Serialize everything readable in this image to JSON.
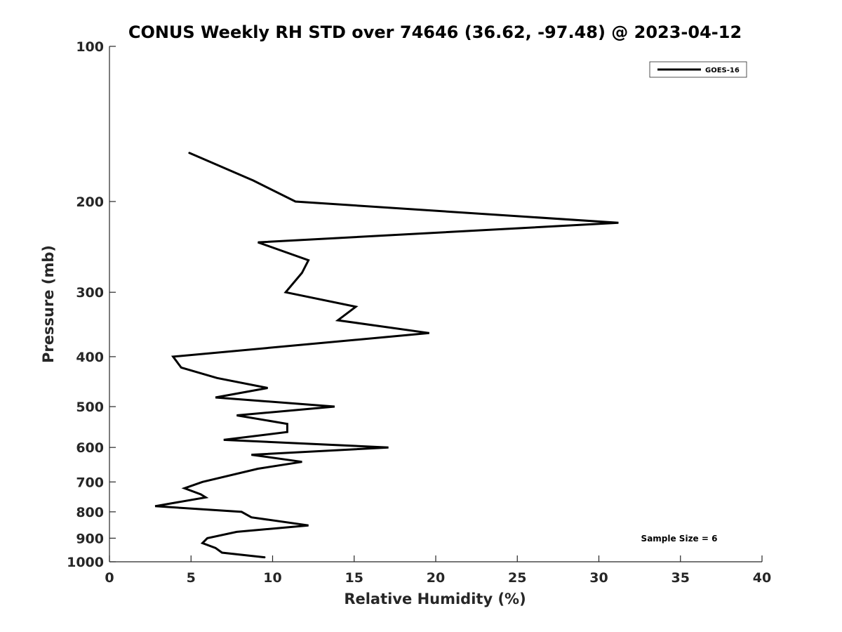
{
  "chart_data": {
    "type": "line",
    "title": "CONUS Weekly RH STD over 74646 (36.62, -97.48) @ 2023-04-12",
    "xlabel": "Relative Humidity (%)",
    "ylabel": "Pressure (mb)",
    "xlim": [
      0,
      40
    ],
    "ylim": [
      100,
      1000
    ],
    "y_scale": "log",
    "y_reversed": true,
    "grid": false,
    "legend_position": "top-right",
    "x_ticks": [
      "0",
      "5",
      "10",
      "15",
      "20",
      "25",
      "30",
      "35",
      "40"
    ],
    "x_tick_values": [
      0,
      5,
      10,
      15,
      20,
      25,
      30,
      35,
      40
    ],
    "y_ticks": [
      "100",
      "200",
      "300",
      "400",
      "500",
      "600",
      "700",
      "800",
      "900",
      "1000"
    ],
    "y_tick_values": [
      100,
      200,
      300,
      400,
      500,
      600,
      700,
      800,
      900,
      1000
    ],
    "series": [
      {
        "name": "GOES-16",
        "color": "#000000",
        "points": [
          {
            "x": 4.9,
            "p": 161
          },
          {
            "x": 8.8,
            "p": 182
          },
          {
            "x": 11.4,
            "p": 200
          },
          {
            "x": 31.2,
            "p": 220
          },
          {
            "x": 9.1,
            "p": 240
          },
          {
            "x": 12.2,
            "p": 260
          },
          {
            "x": 11.8,
            "p": 275
          },
          {
            "x": 10.8,
            "p": 300
          },
          {
            "x": 15.1,
            "p": 320
          },
          {
            "x": 14.0,
            "p": 340
          },
          {
            "x": 19.6,
            "p": 360
          },
          {
            "x": 3.9,
            "p": 400
          },
          {
            "x": 4.4,
            "p": 420
          },
          {
            "x": 6.6,
            "p": 440
          },
          {
            "x": 9.7,
            "p": 460
          },
          {
            "x": 6.5,
            "p": 480
          },
          {
            "x": 13.8,
            "p": 500
          },
          {
            "x": 7.8,
            "p": 520
          },
          {
            "x": 10.9,
            "p": 540
          },
          {
            "x": 10.9,
            "p": 560
          },
          {
            "x": 7.0,
            "p": 580
          },
          {
            "x": 17.1,
            "p": 600
          },
          {
            "x": 8.7,
            "p": 620
          },
          {
            "x": 11.8,
            "p": 640
          },
          {
            "x": 9.1,
            "p": 660
          },
          {
            "x": 5.7,
            "p": 700
          },
          {
            "x": 4.6,
            "p": 720
          },
          {
            "x": 5.6,
            "p": 740
          },
          {
            "x": 5.9,
            "p": 750
          },
          {
            "x": 2.8,
            "p": 780
          },
          {
            "x": 8.1,
            "p": 800
          },
          {
            "x": 8.7,
            "p": 820
          },
          {
            "x": 12.2,
            "p": 850
          },
          {
            "x": 7.8,
            "p": 875
          },
          {
            "x": 6.0,
            "p": 900
          },
          {
            "x": 5.7,
            "p": 920
          },
          {
            "x": 6.5,
            "p": 940
          },
          {
            "x": 6.9,
            "p": 960
          },
          {
            "x": 9.5,
            "p": 980
          }
        ]
      }
    ],
    "legend": [
      {
        "label": "GOES-16",
        "color": "#000000"
      }
    ],
    "annotation": "Sample Size = 6"
  }
}
